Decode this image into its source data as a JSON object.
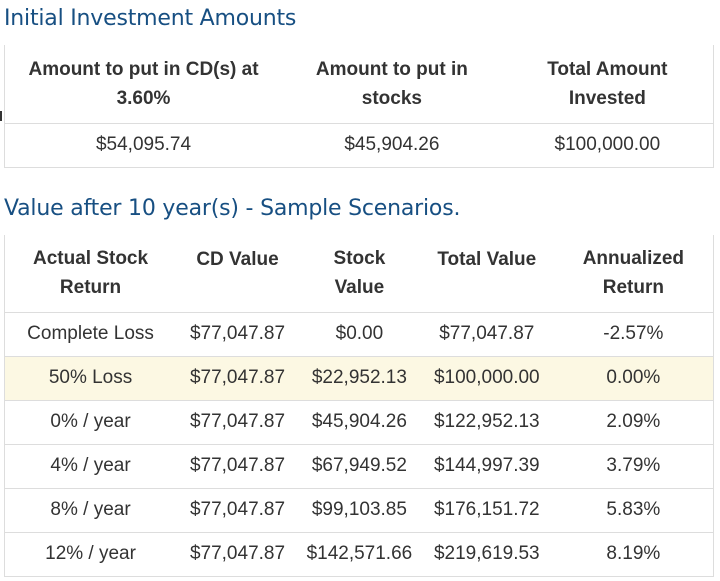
{
  "section1": {
    "title": "Initial Investment Amounts",
    "headers": [
      [
        "Amount to put in CD(s) at",
        "3.60%"
      ],
      [
        "Amount to put in",
        "stocks"
      ],
      [
        "Total Amount",
        "Invested"
      ]
    ],
    "values": [
      "$54,095.74",
      "$45,904.26",
      "$100,000.00"
    ]
  },
  "section2": {
    "title": "Value after 10 year(s) - Sample Scenarios.",
    "headers": [
      [
        "Actual Stock",
        "Return"
      ],
      [
        "CD Value",
        ""
      ],
      [
        "Stock",
        "Value"
      ],
      [
        "Total Value",
        ""
      ],
      [
        "Annualized",
        "Return"
      ]
    ],
    "rows": [
      [
        "Complete Loss",
        "$77,047.87",
        "$0.00",
        "$77,047.87",
        "-2.57%"
      ],
      [
        "50% Loss",
        "$77,047.87",
        "$22,952.13",
        "$100,000.00",
        "0.00%"
      ],
      [
        "0% / year",
        "$77,047.87",
        "$45,904.26",
        "$122,952.13",
        "2.09%"
      ],
      [
        "4% / year",
        "$77,047.87",
        "$67,949.52",
        "$144,997.39",
        "3.79%"
      ],
      [
        "8% / year",
        "$77,047.87",
        "$99,103.85",
        "$176,151.72",
        "5.83%"
      ],
      [
        "12% / year",
        "$77,047.87",
        "$142,571.66",
        "$219,619.53",
        "8.19%"
      ]
    ],
    "highlight_color": "#fcf8e3"
  },
  "colors": {
    "heading": "#174f82",
    "text": "#333333",
    "border": "#dddddd"
  }
}
